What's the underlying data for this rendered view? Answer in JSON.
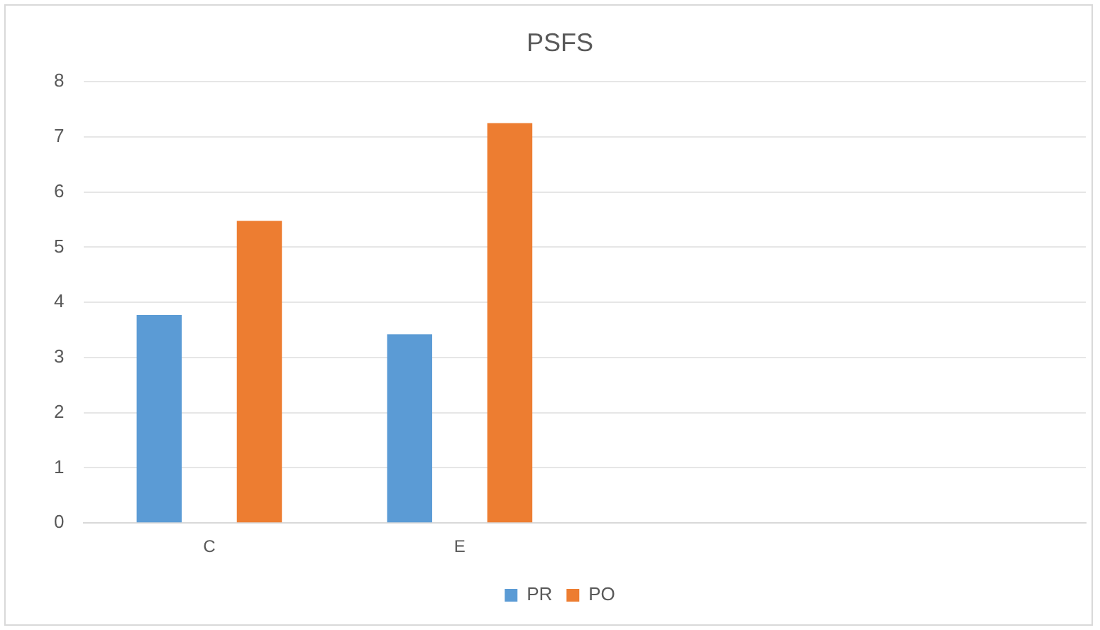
{
  "chart_data": {
    "type": "bar",
    "title": "PSFS",
    "categories": [
      "C",
      "E",
      null,
      null
    ],
    "series": [
      {
        "name": "PR",
        "color": "#5b9bd5",
        "values": [
          3.77,
          3.42,
          null,
          null
        ]
      },
      {
        "name": "PO",
        "color": "#ed7d31",
        "values": [
          5.48,
          7.25,
          null,
          null
        ]
      }
    ],
    "ylim": [
      0,
      8
    ],
    "yticks": [
      0,
      1,
      2,
      3,
      4,
      5,
      6,
      7,
      8
    ],
    "grid": "y",
    "legend": "bottom"
  }
}
